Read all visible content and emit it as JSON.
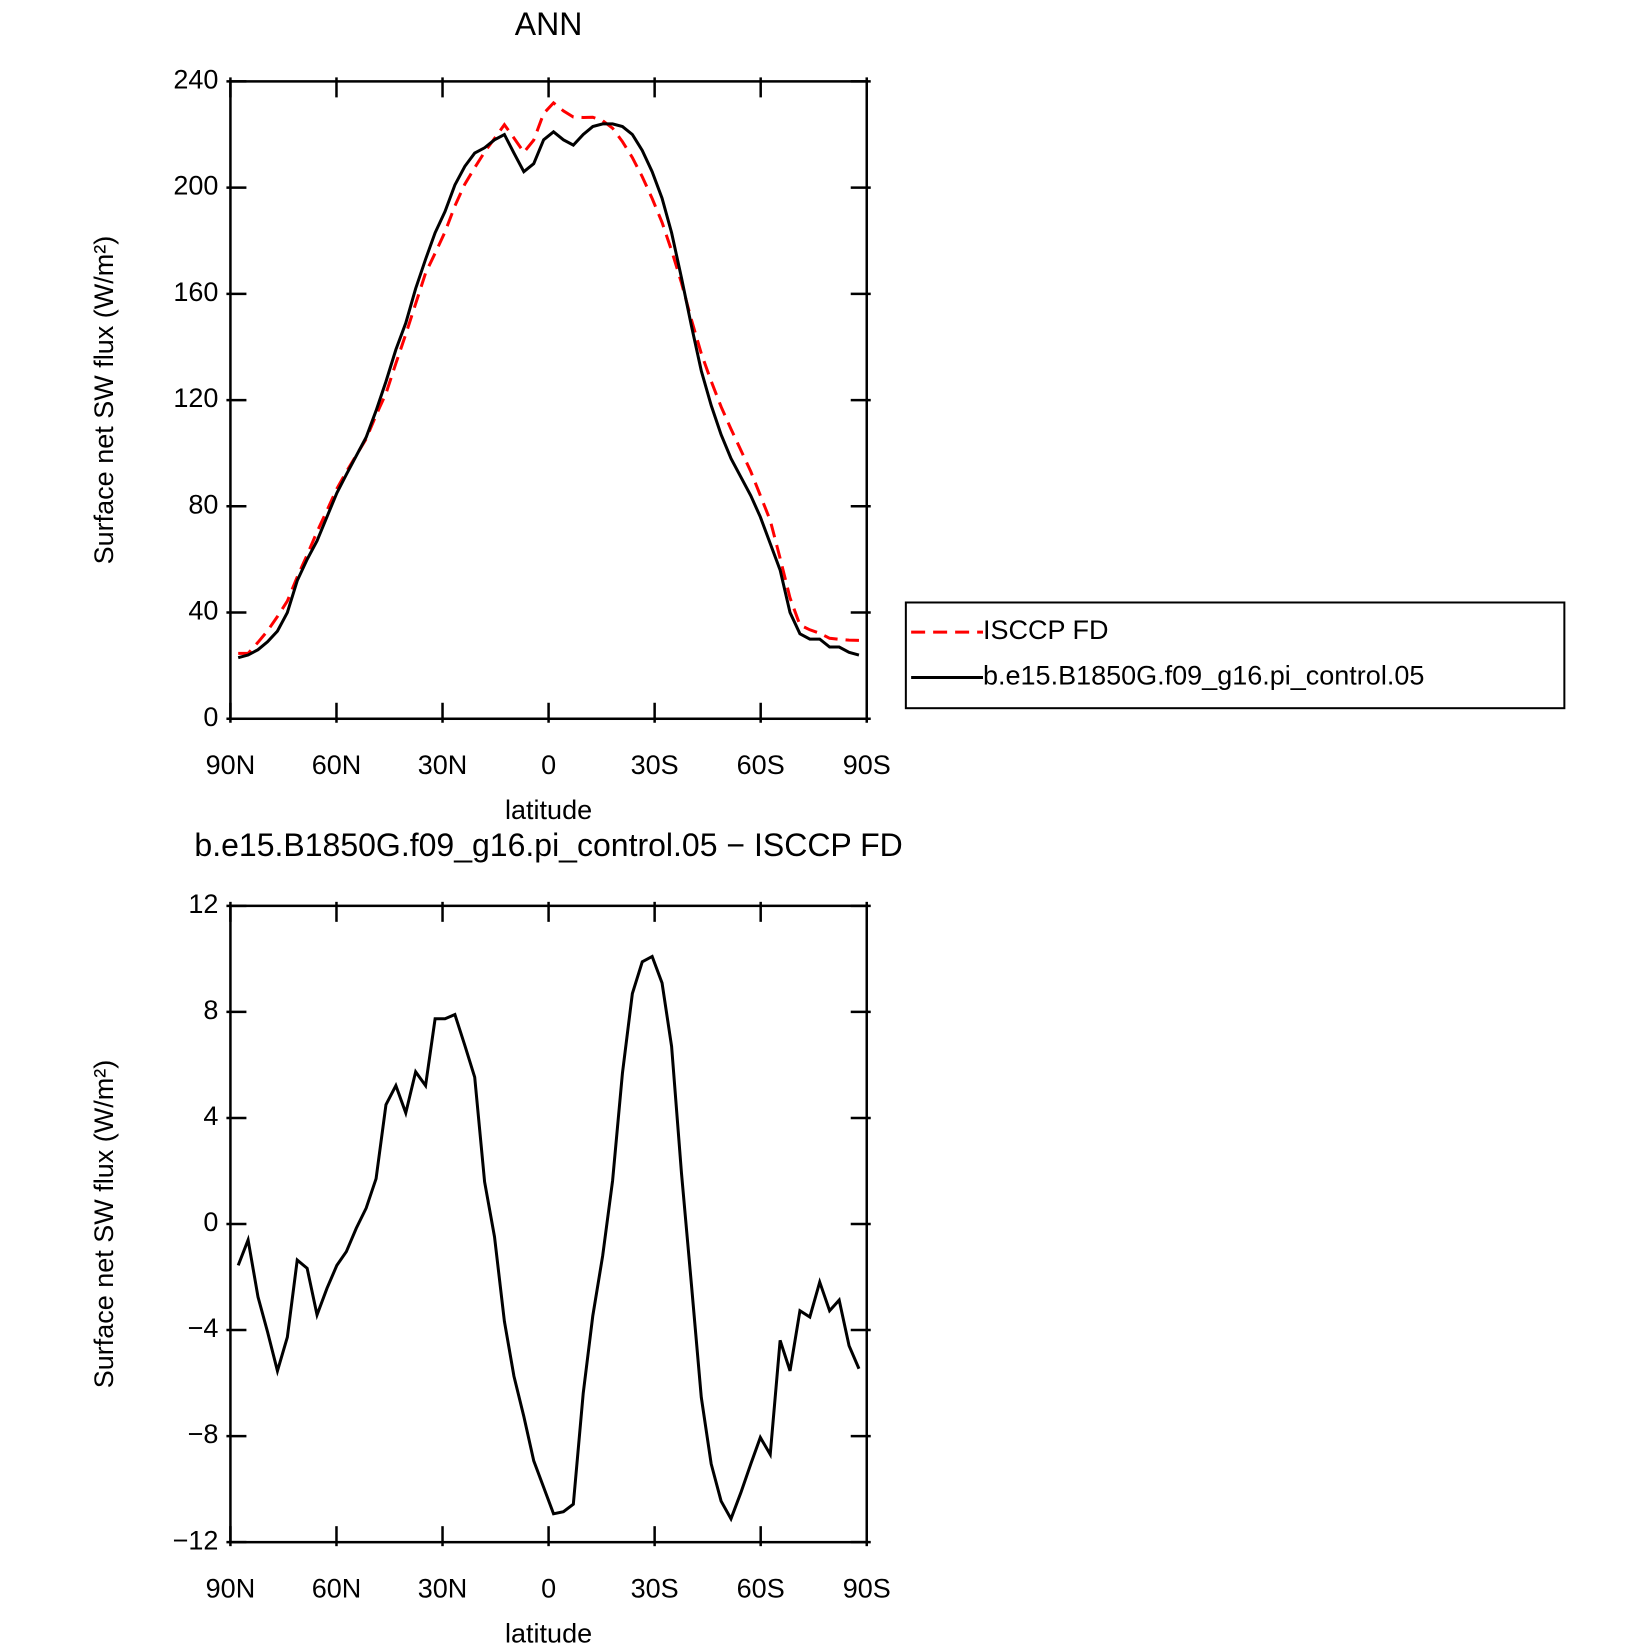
{
  "chart_data": [
    {
      "type": "line",
      "title": "ANN",
      "xlabel": "latitude",
      "ylabel": "Surface net SW flux (W/m²)",
      "x": [
        87.8,
        85.0,
        82.2,
        79.5,
        76.7,
        73.9,
        71.1,
        68.3,
        65.5,
        62.7,
        59.9,
        57.2,
        54.4,
        51.6,
        48.8,
        46.0,
        43.2,
        40.4,
        37.6,
        34.8,
        32.1,
        29.3,
        26.5,
        23.7,
        20.9,
        18.1,
        15.3,
        12.5,
        9.8,
        7.0,
        4.2,
        1.4,
        -1.4,
        -4.2,
        -7.0,
        -9.8,
        -12.5,
        -15.3,
        -18.1,
        -20.9,
        -23.7,
        -26.5,
        -29.3,
        -32.1,
        -34.8,
        -37.6,
        -40.4,
        -43.2,
        -46.0,
        -48.8,
        -51.6,
        -54.4,
        -57.2,
        -59.9,
        -62.7,
        -65.5,
        -68.3,
        -71.1,
        -73.9,
        -76.7,
        -79.5,
        -82.2,
        -85.0,
        -87.8
      ],
      "series": [
        {
          "name": "ISCCP FD",
          "color": "#ff0000",
          "line_style": "dashed",
          "values": [
            24.6,
            24.6,
            28.8,
            33.1,
            38.5,
            44.3,
            53.4,
            61.7,
            70.4,
            78.4,
            86.6,
            93.0,
            99.2,
            105.4,
            114.3,
            122.5,
            133.8,
            144.8,
            156.3,
            167.8,
            175.3,
            183.3,
            193.1,
            201.3,
            207.5,
            213.4,
            218.5,
            223.7,
            218.7,
            213.3,
            217.9,
            227.9,
            231.9,
            228.9,
            226.6,
            226.4,
            226.5,
            225.2,
            222.4,
            217.3,
            211.3,
            204.1,
            195.9,
            186.9,
            176.3,
            164.1,
            150.3,
            137.5,
            127.1,
            117.5,
            109.1,
            101.1,
            93.1,
            84.1,
            74.7,
            60.4,
            45.5,
            35.3,
            33.5,
            32.2,
            30.3,
            29.9,
            29.6,
            29.5
          ]
        },
        {
          "name": "b.e15.B1850G.f09_g16.pi_control.05",
          "color": "#000000",
          "line_style": "solid",
          "values": [
            23,
            24,
            26,
            29,
            33,
            40,
            52,
            60,
            67,
            76,
            85,
            92,
            99,
            106,
            116,
            127,
            139,
            149,
            162,
            173,
            183,
            191,
            201,
            208,
            213,
            215,
            218,
            220,
            213,
            206,
            209,
            218,
            221,
            218,
            216,
            220,
            223,
            224,
            224,
            223,
            220,
            214,
            206,
            196,
            183,
            166,
            148,
            131,
            118,
            107,
            98,
            91,
            84,
            76,
            66,
            56,
            40,
            32,
            30,
            30,
            27,
            27,
            25,
            24
          ]
        }
      ],
      "xlim": [
        90,
        -90
      ],
      "xticks": [
        {
          "value": 90,
          "label": "90N"
        },
        {
          "value": 60,
          "label": "60N"
        },
        {
          "value": 30,
          "label": "30N"
        },
        0,
        {
          "value": -30,
          "label": "30S"
        },
        {
          "value": -60,
          "label": "60S"
        },
        {
          "value": -90,
          "label": "90S"
        }
      ],
      "ylim": [
        0,
        240
      ],
      "yticks": [
        0,
        40,
        80,
        120,
        160,
        200,
        240
      ],
      "legend": "right"
    },
    {
      "type": "line",
      "title": "b.e15.B1850G.f09_g16.pi_control.05 − ISCCP FD",
      "xlabel": "latitude",
      "ylabel": "Surface net SW flux (W/m²)",
      "x": [
        87.8,
        85.0,
        82.2,
        79.5,
        76.7,
        73.9,
        71.1,
        68.3,
        65.5,
        62.7,
        59.9,
        57.2,
        54.4,
        51.6,
        48.8,
        46.0,
        43.2,
        40.4,
        37.6,
        34.8,
        32.1,
        29.3,
        26.5,
        23.7,
        20.9,
        18.1,
        15.3,
        12.5,
        9.8,
        7.0,
        4.2,
        1.4,
        -1.4,
        -4.2,
        -7.0,
        -9.8,
        -12.5,
        -15.3,
        -18.1,
        -20.9,
        -23.7,
        -26.5,
        -29.3,
        -32.1,
        -34.8,
        -37.6,
        -40.4,
        -43.2,
        -46.0,
        -48.8,
        -51.6,
        -54.4,
        -57.2,
        -59.9,
        -62.7,
        -65.5,
        -68.3,
        -71.1,
        -73.9,
        -76.7,
        -79.5,
        -82.2,
        -85.0,
        -87.8
      ],
      "color": "#000000",
      "values": [
        -1.56,
        -0.6,
        -2.75,
        -4.07,
        -5.54,
        -4.27,
        -1.36,
        -1.67,
        -3.43,
        -2.43,
        -1.56,
        -1.04,
        -0.16,
        0.6,
        1.71,
        4.5,
        5.22,
        4.19,
        5.74,
        5.22,
        7.74,
        7.74,
        7.9,
        6.74,
        5.54,
        1.59,
        -0.48,
        -3.67,
        -5.74,
        -7.26,
        -8.93,
        -9.93,
        -10.93,
        -10.85,
        -10.57,
        -6.38,
        -3.47,
        -1.2,
        1.63,
        5.7,
        8.69,
        9.89,
        10.09,
        9.09,
        6.7,
        1.91,
        -2.27,
        -6.54,
        -9.05,
        -10.45,
        -11.12,
        -10.13,
        -9.05,
        -8.05,
        -8.69,
        -4.39,
        -5.54,
        -3.27,
        -3.51,
        -2.19,
        -3.27,
        -2.87,
        -4.59,
        -5.46
      ],
      "xlim": [
        90,
        -90
      ],
      "xticks": [
        {
          "value": 90,
          "label": "90N"
        },
        {
          "value": 60,
          "label": "60N"
        },
        {
          "value": 30,
          "label": "30N"
        },
        0,
        {
          "value": -30,
          "label": "30S"
        },
        {
          "value": -60,
          "label": "60S"
        },
        {
          "value": -90,
          "label": "90S"
        }
      ],
      "ylim": [
        -12,
        12
      ],
      "yticks": [
        {
          "value": -12,
          "label": "−12"
        },
        {
          "value": -8,
          "label": "−8"
        },
        {
          "value": -4,
          "label": "−4"
        },
        0,
        4,
        8,
        12
      ]
    }
  ]
}
